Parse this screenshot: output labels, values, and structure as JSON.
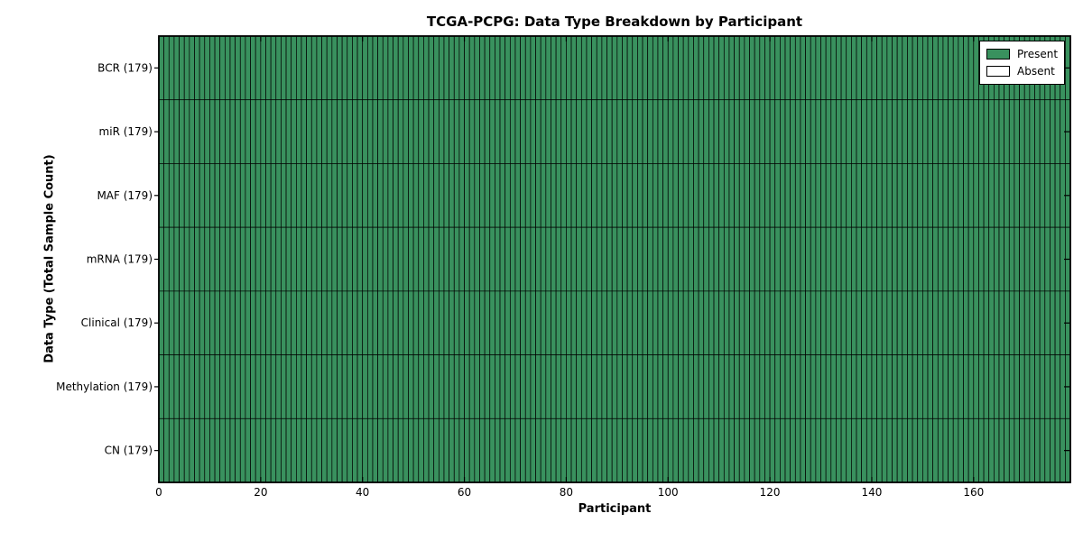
{
  "title": "TCGA-PCPG: Data Type Breakdown by Participant",
  "axes": {
    "xlabel": "Participant",
    "ylabel": "Data Type (Total Sample Count)"
  },
  "legend": {
    "items": [
      {
        "label": "Present",
        "swatch_color": "#39915e"
      },
      {
        "label": "Absent",
        "swatch_color": "#ffffff"
      }
    ]
  },
  "chart_data": {
    "type": "heatmap",
    "title": "TCGA-PCPG: Data Type Breakdown by Participant",
    "xlabel": "Participant",
    "ylabel": "Data Type (Total Sample Count)",
    "participants_total": 179,
    "xlim": [
      0,
      179
    ],
    "x_ticks": [
      0,
      20,
      40,
      60,
      80,
      100,
      120,
      140,
      160
    ],
    "rows": [
      {
        "label": "BCR",
        "tick_label": "BCR (179)",
        "total_samples": 179,
        "present_count": 179,
        "absent_count": 0
      },
      {
        "label": "miR",
        "tick_label": "miR (179)",
        "total_samples": 179,
        "present_count": 179,
        "absent_count": 0
      },
      {
        "label": "MAF",
        "tick_label": "MAF (179)",
        "total_samples": 179,
        "present_count": 179,
        "absent_count": 0
      },
      {
        "label": "mRNA",
        "tick_label": "mRNA (179)",
        "total_samples": 179,
        "present_count": 179,
        "absent_count": 0
      },
      {
        "label": "Clinical",
        "tick_label": "Clinical (179)",
        "total_samples": 179,
        "present_count": 179,
        "absent_count": 0
      },
      {
        "label": "Methylation",
        "tick_label": "Methylation (179)",
        "total_samples": 179,
        "present_count": 179,
        "absent_count": 0
      },
      {
        "label": "CN",
        "tick_label": "CN (179)",
        "total_samples": 179,
        "present_count": 179,
        "absent_count": 0
      }
    ],
    "colors": {
      "present": "#39915e",
      "absent": "#ffffff",
      "cell_edge": "#000000",
      "axes_edge": "#000000"
    },
    "legend_position": "upper right",
    "grid": false
  }
}
